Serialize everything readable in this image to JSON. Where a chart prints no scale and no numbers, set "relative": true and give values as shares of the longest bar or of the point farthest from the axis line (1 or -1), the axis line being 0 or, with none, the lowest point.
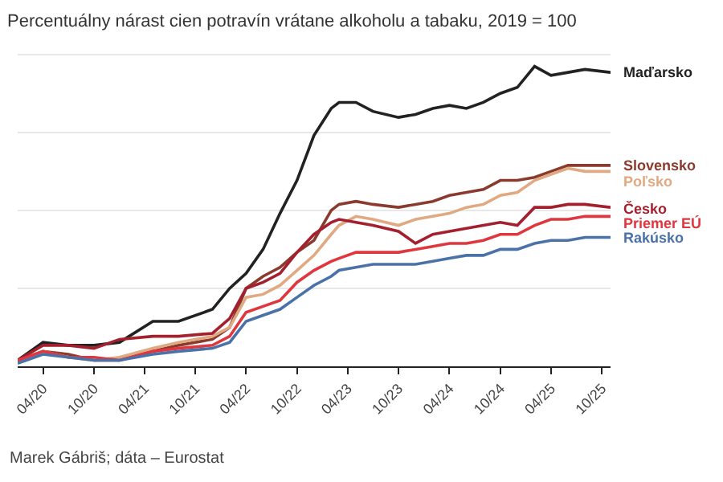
{
  "chart_data": {
    "type": "line",
    "title": "Percentuálny nárast cien potravín vrátane alkoholu a tabaku, 2019 = 100",
    "relative": true,
    "grid": "y",
    "legend": false,
    "marker": "none",
    "line_style": "solid",
    "x": [
      "2020-01",
      "2020-04",
      "2020-07",
      "2020-10",
      "2021-01",
      "2021-05",
      "2021-08",
      "2021-12",
      "2022-02",
      "2022-04",
      "2022-06",
      "2022-08",
      "2022-10",
      "2022-12",
      "2023-02",
      "2023-03",
      "2023-05",
      "2023-07",
      "2023-10",
      "2023-12",
      "2024-02",
      "2024-04",
      "2024-06",
      "2024-08",
      "2024-10",
      "2024-12",
      "2025-02",
      "2025-04",
      "2025-06",
      "2025-08",
      "2025-11"
    ],
    "xlim": [
      "2020-01",
      "2025-11"
    ],
    "xticks": [
      {
        "value": "2020-04",
        "label": "04/20"
      },
      {
        "value": "2020-10",
        "label": "10/20"
      },
      {
        "value": "2021-04",
        "label": "04/21"
      },
      {
        "value": "2021-10",
        "label": "10/21"
      },
      {
        "value": "2022-04",
        "label": "04/22"
      },
      {
        "value": "2022-10",
        "label": "10/22"
      },
      {
        "value": "2023-04",
        "label": "04/23"
      },
      {
        "value": "2023-10",
        "label": "10/23"
      },
      {
        "value": "2024-04",
        "label": "04/24"
      },
      {
        "value": "2024-10",
        "label": "10/24"
      },
      {
        "value": "2025-04",
        "label": "04/25"
      },
      {
        "value": "2025-10",
        "label": "10/25"
      }
    ],
    "series": [
      {
        "name": "Maďarsko",
        "color": "#222222",
        "values": [
          0.02,
          0.08,
          0.07,
          0.07,
          0.08,
          0.15,
          0.15,
          0.19,
          0.26,
          0.31,
          0.39,
          0.51,
          0.62,
          0.77,
          0.86,
          0.88,
          0.88,
          0.85,
          0.83,
          0.84,
          0.86,
          0.87,
          0.86,
          0.88,
          0.91,
          0.93,
          1,
          0.97,
          0.98,
          0.99,
          0.98
        ]
      },
      {
        "name": "Slovensko",
        "color": "#8b3a2e",
        "values": [
          0.02,
          0.05,
          0.04,
          0.02,
          0.02,
          0.05,
          0.07,
          0.09,
          0.13,
          0.26,
          0.3,
          0.33,
          0.38,
          0.42,
          0.52,
          0.54,
          0.55,
          0.54,
          0.53,
          0.54,
          0.55,
          0.57,
          0.58,
          0.59,
          0.62,
          0.62,
          0.63,
          0.65,
          0.67,
          0.67,
          0.67
        ]
      },
      {
        "name": "Poľsko",
        "color": "#e0a982",
        "values": [
          0.02,
          0.05,
          0.03,
          0.02,
          0.03,
          0.06,
          0.08,
          0.1,
          0.13,
          0.23,
          0.24,
          0.27,
          0.32,
          0.37,
          0.44,
          0.47,
          0.5,
          0.49,
          0.47,
          0.49,
          0.5,
          0.51,
          0.53,
          0.54,
          0.57,
          0.58,
          0.62,
          0.64,
          0.66,
          0.65,
          0.65
        ]
      },
      {
        "name": "Česko",
        "color": "#a4202f",
        "values": [
          0.02,
          0.07,
          0.07,
          0.06,
          0.09,
          0.1,
          0.1,
          0.11,
          0.16,
          0.26,
          0.28,
          0.31,
          0.38,
          0.44,
          0.48,
          0.49,
          0.48,
          0.47,
          0.45,
          0.41,
          0.44,
          0.45,
          0.46,
          0.47,
          0.48,
          0.47,
          0.53,
          0.53,
          0.54,
          0.54,
          0.53
        ]
      },
      {
        "name": "Priemer EÚ",
        "color": "#e0363e",
        "values": [
          0.02,
          0.05,
          0.03,
          0.03,
          0.02,
          0.05,
          0.06,
          0.07,
          0.1,
          0.18,
          0.2,
          0.22,
          0.28,
          0.32,
          0.35,
          0.36,
          0.38,
          0.38,
          0.38,
          0.39,
          0.4,
          0.41,
          0.41,
          0.42,
          0.44,
          0.44,
          0.47,
          0.49,
          0.49,
          0.5,
          0.5
        ]
      },
      {
        "name": "Rakúsko",
        "color": "#4a72a8",
        "values": [
          0.01,
          0.04,
          0.03,
          0.02,
          0.02,
          0.04,
          0.05,
          0.06,
          0.08,
          0.15,
          0.17,
          0.19,
          0.23,
          0.27,
          0.3,
          0.32,
          0.33,
          0.34,
          0.34,
          0.34,
          0.35,
          0.36,
          0.37,
          0.37,
          0.39,
          0.39,
          0.41,
          0.42,
          0.42,
          0.43,
          0.43
        ]
      }
    ],
    "annotations": [
      "Marek Gábriš; dáta – Eurostat"
    ]
  }
}
